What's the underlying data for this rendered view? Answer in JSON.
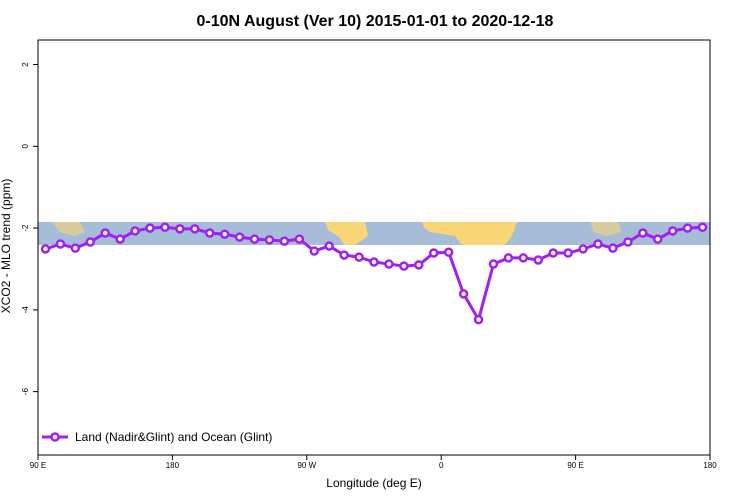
{
  "chart_data": {
    "type": "line",
    "title": "0-10N August (Ver 10)   2015-01-01 to 2020-12-18",
    "x_label": "Longitude (deg E)",
    "y_label": "XCO2 - MLO trend (ppm)",
    "x": [
      95,
      105,
      115,
      125,
      135,
      145,
      155,
      165,
      175,
      185,
      195,
      205,
      215,
      225,
      235,
      245,
      255,
      265,
      275,
      285,
      295,
      305,
      315,
      325,
      335,
      345,
      355,
      365,
      375,
      385,
      395,
      405,
      415,
      425,
      435,
      445,
      455,
      465,
      475,
      485,
      495,
      505,
      515,
      525,
      535
    ],
    "series": [
      {
        "name": "Land (Nadir&Glint) and Ocean (Glint)",
        "color": "#a020f0",
        "values": [
          -2.51,
          -2.39,
          -2.49,
          -2.34,
          -2.12,
          -2.27,
          -2.07,
          -2.0,
          -1.98,
          -2.02,
          -2.02,
          -2.12,
          -2.15,
          -2.22,
          -2.27,
          -2.29,
          -2.32,
          -2.27,
          -2.56,
          -2.44,
          -2.66,
          -2.71,
          -2.83,
          -2.88,
          -2.93,
          -2.9,
          -2.61,
          -2.59,
          -3.61,
          -4.24,
          -2.88,
          -2.73,
          -2.73,
          -2.78,
          -2.61,
          -2.61,
          -2.51,
          -2.39,
          -2.49,
          -2.34,
          -2.12,
          -2.27,
          -2.07,
          -2.0,
          -1.98
        ]
      }
    ],
    "xlim": [
      90,
      540
    ],
    "xticks": [
      {
        "value": 90,
        "label": "90 E"
      },
      180,
      {
        "value": 270,
        "label": "90 W"
      },
      {
        "value": 360,
        "label": "0"
      },
      {
        "value": 450,
        "label": "90 E"
      },
      {
        "value": 540,
        "label": "180"
      }
    ],
    "ylim": [
      -7.55,
      2.6
    ],
    "yticks": [
      -6,
      -4,
      -2,
      0,
      2
    ],
    "legend": "bottom-left"
  }
}
